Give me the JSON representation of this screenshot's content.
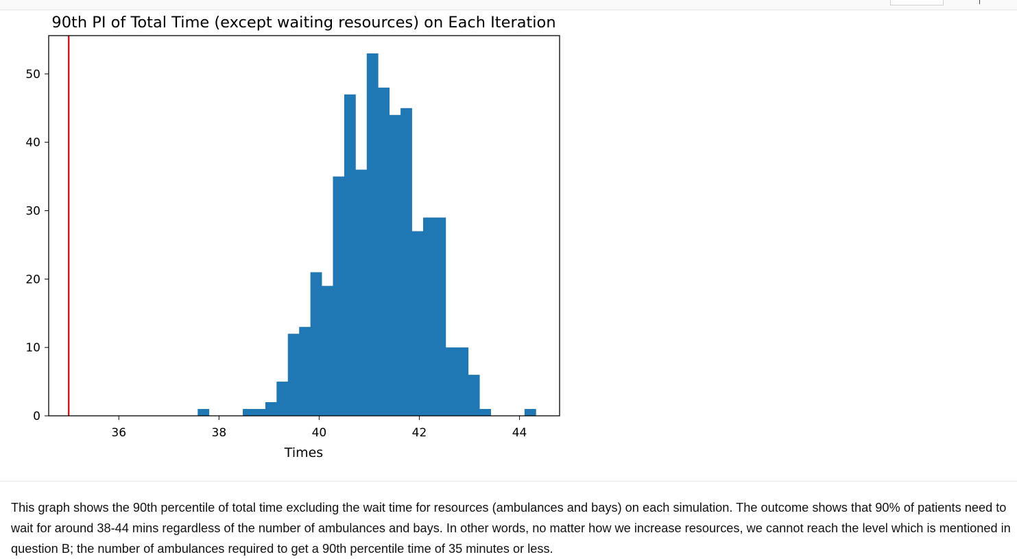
{
  "chart_data": {
    "type": "bar",
    "title": "90th PI of Total Time (except waiting resources) on Each Iteration",
    "xlabel": "Times",
    "ylabel": "",
    "xlim": [
      34.6,
      44.8
    ],
    "ylim": [
      0,
      55.6
    ],
    "xticks": [
      36,
      38,
      40,
      42,
      44
    ],
    "yticks": [
      0,
      10,
      20,
      30,
      40,
      50
    ],
    "grid": false,
    "legend": "none",
    "bar_color": "#1f77b4",
    "vline": {
      "x": 35,
      "color": "#e00000"
    },
    "bin_width": 0.225,
    "bins": [
      {
        "x0": 37.575,
        "value": 1
      },
      {
        "x0": 37.8,
        "value": 0
      },
      {
        "x0": 38.025,
        "value": 0
      },
      {
        "x0": 38.25,
        "value": 0
      },
      {
        "x0": 38.475,
        "value": 1
      },
      {
        "x0": 38.7,
        "value": 1
      },
      {
        "x0": 38.925,
        "value": 2
      },
      {
        "x0": 39.15,
        "value": 5
      },
      {
        "x0": 39.375,
        "value": 12
      },
      {
        "x0": 39.6,
        "value": 13
      },
      {
        "x0": 39.825,
        "value": 21
      },
      {
        "x0": 40.05,
        "value": 19
      },
      {
        "x0": 40.275,
        "value": 35
      },
      {
        "x0": 40.5,
        "value": 47
      },
      {
        "x0": 40.725,
        "value": 36
      },
      {
        "x0": 40.95,
        "value": 53
      },
      {
        "x0": 41.175,
        "value": 48
      },
      {
        "x0": 41.4,
        "value": 44
      },
      {
        "x0": 41.625,
        "value": 45
      },
      {
        "x0": 41.85,
        "value": 27
      },
      {
        "x0": 42.075,
        "value": 29
      },
      {
        "x0": 42.3,
        "value": 29
      },
      {
        "x0": 42.525,
        "value": 10
      },
      {
        "x0": 42.75,
        "value": 10
      },
      {
        "x0": 42.975,
        "value": 6
      },
      {
        "x0": 43.2,
        "value": 1
      },
      {
        "x0": 43.425,
        "value": 0
      },
      {
        "x0": 43.65,
        "value": 0
      },
      {
        "x0": 43.875,
        "value": 0
      },
      {
        "x0": 44.1,
        "value": 1
      }
    ]
  },
  "markdown": {
    "paragraph": "This graph shows the 90th percentile of total time excluding the wait time for resources (ambulances and bays) on each simulation. The outcome shows that 90% of patients need to wait for around 38-44 mins regardless of the number of ambulances and bays. In other words, no matter how we increase resources, we cannot reach the level which is mentioned in question B; the number of ambulances required to get a 90th percentile time of 35 minutes or less."
  }
}
